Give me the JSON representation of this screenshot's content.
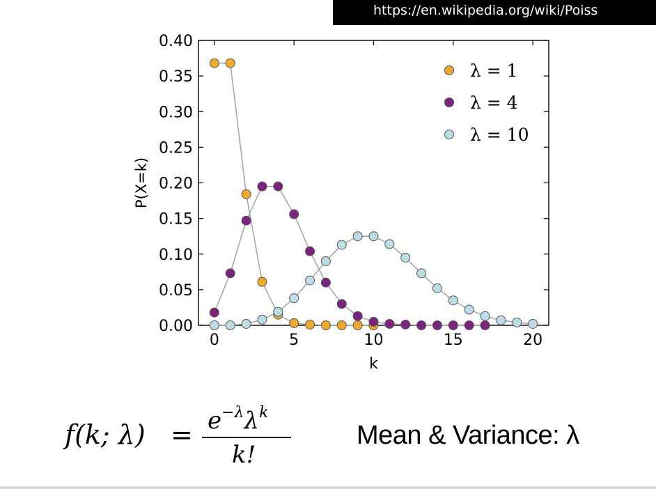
{
  "url": "https://en.wikipedia.org/wiki/Poiss",
  "formula": {
    "lhs": "f(k; λ)",
    "equals": "=",
    "numerator_base": "e",
    "numerator_exp": "−λ",
    "numerator_lambda": "λ",
    "numerator_lambda_exp": "k",
    "denominator": "k!"
  },
  "mean_variance_text": "Mean & Variance: λ",
  "chart_data": {
    "type": "line",
    "title": "",
    "xlabel": "k",
    "ylabel": "P(X=k)",
    "xlim": [
      -1,
      21
    ],
    "ylim": [
      0,
      0.4
    ],
    "xticks": [
      0,
      5,
      10,
      15,
      20
    ],
    "xtick_labels": [
      "0",
      "5",
      "10",
      "15",
      "20"
    ],
    "yticks": [
      0.0,
      0.05,
      0.1,
      0.15,
      0.2,
      0.25,
      0.3,
      0.35,
      0.4
    ],
    "ytick_labels": [
      "0.00",
      "0.05",
      "0.10",
      "0.15",
      "0.20",
      "0.25",
      "0.30",
      "0.35",
      "0.40"
    ],
    "legend_position": "top-right",
    "line_color": "#a8a8a8",
    "marker_edge_color": "#555555",
    "series": [
      {
        "name": "λ = 1",
        "color": "#f0a92f",
        "x": [
          0,
          1,
          2,
          3,
          4,
          5,
          6,
          7,
          8,
          9,
          10
        ],
        "values": [
          0.368,
          0.368,
          0.184,
          0.061,
          0.015,
          0.003,
          0.001,
          0.0,
          0.0,
          0.0,
          0.0
        ]
      },
      {
        "name": "λ = 4",
        "color": "#7b237f",
        "x": [
          0,
          1,
          2,
          3,
          4,
          5,
          6,
          7,
          8,
          9,
          10,
          11,
          12,
          13,
          14,
          15,
          16,
          17
        ],
        "values": [
          0.018,
          0.073,
          0.147,
          0.195,
          0.195,
          0.156,
          0.104,
          0.06,
          0.03,
          0.013,
          0.005,
          0.002,
          0.001,
          0.0,
          0.0,
          0.0,
          0.0,
          0.0
        ]
      },
      {
        "name": "λ = 10",
        "color": "#bddde6",
        "x": [
          0,
          1,
          2,
          3,
          4,
          5,
          6,
          7,
          8,
          9,
          10,
          11,
          12,
          13,
          14,
          15,
          16,
          17,
          18,
          19,
          20
        ],
        "values": [
          0.0,
          0.0,
          0.002,
          0.008,
          0.019,
          0.038,
          0.063,
          0.09,
          0.113,
          0.125,
          0.125,
          0.114,
          0.095,
          0.073,
          0.052,
          0.035,
          0.022,
          0.013,
          0.007,
          0.004,
          0.002
        ]
      }
    ]
  }
}
